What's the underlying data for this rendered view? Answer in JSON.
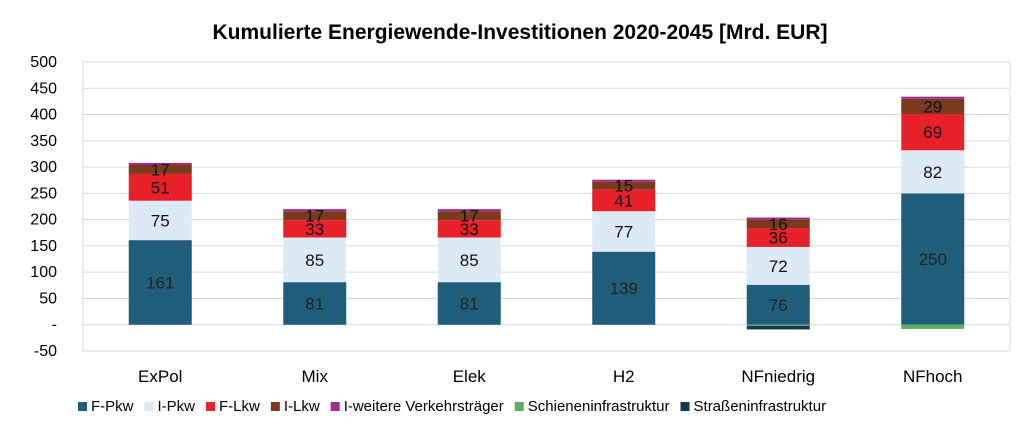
{
  "chart_data": {
    "type": "bar",
    "stacked": true,
    "title": "Kumulierte Energiewende-Investitionen 2020-2045 [Mrd. EUR]",
    "xlabel": "",
    "ylabel": "",
    "ylim": [
      -50,
      500
    ],
    "yticks": [
      -50,
      0,
      50,
      100,
      150,
      200,
      250,
      300,
      350,
      400,
      450,
      500
    ],
    "ytick_labels": [
      "-50",
      "-",
      "50",
      "100",
      "150",
      "200",
      "250",
      "300",
      "350",
      "400",
      "450",
      "500"
    ],
    "grid": true,
    "legend_position": "bottom",
    "categories": [
      "ExPol",
      "Mix",
      "Elek",
      "H2",
      "NFniedrig",
      "NFhoch"
    ],
    "series": [
      {
        "name": "F-Pkw",
        "color": "#1f5d7a",
        "values": [
          161,
          81,
          81,
          139,
          76,
          250
        ],
        "labels": [
          "161",
          "81",
          "81",
          "139",
          "76",
          "250"
        ]
      },
      {
        "name": "I-Pkw",
        "color": "#dde9f4",
        "values": [
          75,
          85,
          85,
          77,
          72,
          82
        ],
        "labels": [
          "75",
          "85",
          "85",
          "77",
          "72",
          "82"
        ]
      },
      {
        "name": "F-Lkw",
        "color": "#e8202a",
        "values": [
          51,
          33,
          33,
          41,
          36,
          69
        ],
        "labels": [
          "51",
          "33",
          "33",
          "41",
          "36",
          "69"
        ]
      },
      {
        "name": "I-Lkw",
        "color": "#7b3a1e",
        "values": [
          17,
          17,
          17,
          15,
          16,
          29
        ],
        "labels": [
          "17",
          "17",
          "17",
          "15",
          "16",
          "29"
        ]
      },
      {
        "name": "I-weitere Verkehrsträger",
        "color": "#9b2d8c",
        "values": [
          4,
          4,
          4,
          4,
          4,
          4
        ],
        "labels": [
          "",
          "",
          "",
          "",
          "",
          ""
        ]
      },
      {
        "name": "Schieneninfrastruktur",
        "color": "#5bb25b",
        "values": [
          0,
          0,
          0,
          0,
          -2,
          -8
        ],
        "labels": [
          "",
          "",
          "",
          "",
          "",
          ""
        ]
      },
      {
        "name": "Straßeninfrastruktur",
        "color": "#163a4d",
        "values": [
          0,
          0,
          0,
          0,
          -7,
          0
        ],
        "labels": [
          "",
          "",
          "",
          "",
          "",
          ""
        ]
      }
    ]
  }
}
